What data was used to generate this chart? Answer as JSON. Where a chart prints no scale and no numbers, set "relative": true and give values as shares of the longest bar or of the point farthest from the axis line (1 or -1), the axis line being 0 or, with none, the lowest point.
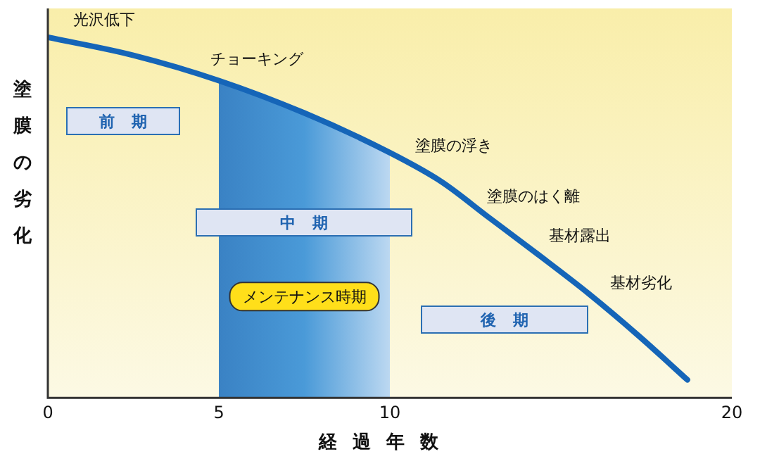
{
  "chart_data": {
    "type": "line",
    "relative": true,
    "xlabel": "経過年数",
    "ylabel": "塗膜の劣化",
    "xlim": [
      0,
      20
    ],
    "xticks": [
      0,
      5,
      10,
      20
    ],
    "grid": false,
    "legend": false,
    "marker": "none",
    "line_style": "solid",
    "series": [
      {
        "color": "#1565b8",
        "x": [
          0,
          2.5,
          5,
          7.5,
          10,
          11.5,
          12.9,
          14.3,
          15.8,
          17.3,
          18.7
        ],
        "values": [
          1.0,
          0.95,
          0.88,
          0.79,
          0.68,
          0.6,
          0.5,
          0.4,
          0.29,
          0.17,
          0.05
        ]
      }
    ],
    "bands": [
      {
        "axis": "x",
        "from": 5,
        "to": 10,
        "label": "メンテナンス時期",
        "color": "#4a9ad8"
      }
    ],
    "annotations": [
      {
        "text": "光沢低下",
        "x": 0.5,
        "y": 1.0
      },
      {
        "text": "チョーキング",
        "x": 4.5,
        "y": 0.89
      },
      {
        "text": "塗膜の浮き",
        "x": 10.5,
        "y": 0.65
      },
      {
        "text": "塗膜のはく離",
        "x": 12.6,
        "y": 0.51
      },
      {
        "text": "基材露出",
        "x": 14.4,
        "y": 0.4
      },
      {
        "text": "基材劣化",
        "x": 16.2,
        "y": 0.27
      },
      "前期",
      "中期",
      "後期"
    ]
  }
}
